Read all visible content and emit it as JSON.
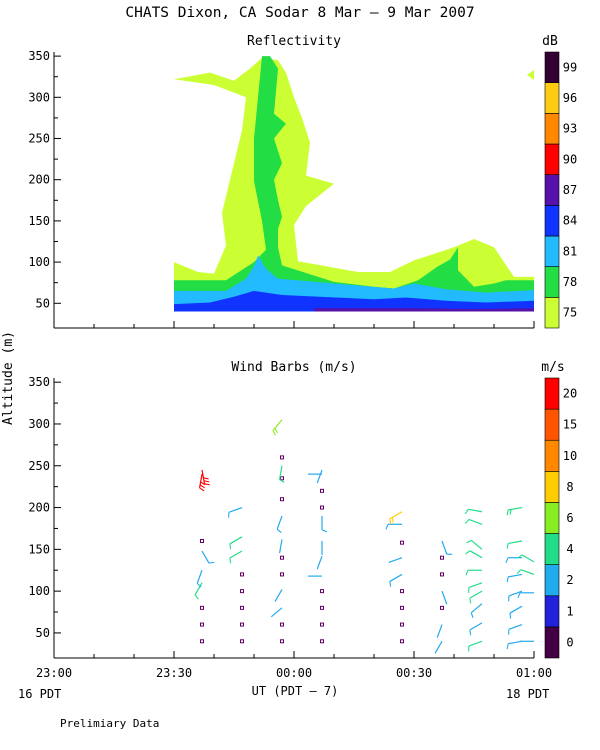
{
  "header": {
    "title": "CHATS Dixon, CA  Sodar   8 Mar –  9 Mar 2007",
    "footnote": "Prelimiary Data"
  },
  "x_axis": {
    "label": "UT  (PDT – 7)",
    "ticks": [
      "23:00",
      "23:30",
      "00:00",
      "00:30",
      "01:00"
    ],
    "left_note": "16 PDT",
    "right_note": "18 PDT"
  },
  "y_axis_label": "Altitude  (m)",
  "colors": {
    "ref_scale": [
      "#ccff33",
      "#22dd44",
      "#22bbff",
      "#1133ff",
      "#5511aa",
      "#ff0000",
      "#ff8800",
      "#ffcc11",
      "#330033"
    ],
    "wind_scale": [
      "#440044",
      "#2222dd",
      "#22aaee",
      "#22dd88",
      "#88ee22",
      "#ffcc00",
      "#ff8800",
      "#ff5500",
      "#ff0000"
    ]
  },
  "chart_data": [
    {
      "type": "heatmap",
      "title": "Reflectivity",
      "units": "dB",
      "ylim": [
        20,
        355
      ],
      "yticks": [
        50,
        100,
        150,
        200,
        250,
        300,
        350
      ],
      "x_range": [
        "23:00",
        "01:00"
      ],
      "colorbar": [
        75,
        78,
        81,
        84,
        87,
        90,
        93,
        96,
        99
      ],
      "contours": [
        {
          "level": 75,
          "polygon": [
            [
              "23:30",
              100
            ],
            [
              "23:30",
              63
            ],
            [
              "00:00",
              63
            ],
            [
              "00:20",
              63
            ],
            [
              "00:42",
              58
            ],
            [
              "01:00",
              58
            ],
            [
              "01:00",
              82
            ],
            [
              "00:55",
              82
            ],
            [
              "00:50",
              118
            ],
            [
              "00:45",
              128
            ],
            [
              "00:40",
              118
            ],
            [
              "00:30",
              102
            ],
            [
              "00:24",
              88
            ],
            [
              "00:16",
              88
            ],
            [
              "00:01",
              101
            ],
            [
              "00:00",
              145
            ],
            [
              "00:03",
              168
            ],
            [
              "00:10",
              195
            ],
            [
              "00:03",
              205
            ],
            [
              "00:04",
              245
            ],
            [
              "00:02",
              275
            ],
            [
              "00:00",
              300
            ],
            [
              "23:58",
              330
            ],
            [
              "23:56",
              345
            ],
            [
              "23:52",
              348
            ],
            [
              "23:49",
              335
            ],
            [
              "23:45",
              320
            ],
            [
              "23:39",
              330
            ],
            [
              "23:30",
              322
            ],
            [
              "23:40",
              315
            ],
            [
              "23:48",
              300
            ],
            [
              "23:47",
              260
            ],
            [
              "23:46",
              240
            ],
            [
              "23:44",
              200
            ],
            [
              "23:42",
              160
            ],
            [
              "23:43",
              120
            ],
            [
              "23:40",
              86
            ],
            [
              "23:36",
              88
            ]
          ]
        },
        {
          "level": 78,
          "polygon": [
            [
              "23:30",
              78
            ],
            [
              "23:43",
              78
            ],
            [
              "23:50",
              100
            ],
            [
              "23:53",
              115
            ],
            [
              "23:52",
              150
            ],
            [
              "23:50",
              198
            ],
            [
              "23:50",
              250
            ],
            [
              "23:51",
              300
            ],
            [
              "23:52",
              350
            ],
            [
              "23:54",
              350
            ],
            [
              "23:56",
              335
            ],
            [
              "23:55",
              280
            ],
            [
              "23:58",
              268
            ],
            [
              "23:55",
              250
            ],
            [
              "23:57",
              220
            ],
            [
              "23:55",
              200
            ],
            [
              "23:56",
              175
            ],
            [
              "23:57",
              155
            ],
            [
              "23:56",
              140
            ],
            [
              "23:56",
              118
            ],
            [
              "23:57",
              96
            ],
            [
              "00:10",
              76
            ],
            [
              "00:20",
              70
            ],
            [
              "00:25",
              68
            ],
            [
              "00:31",
              78
            ],
            [
              "00:36",
              95
            ],
            [
              "00:39",
              103
            ],
            [
              "00:41",
              118
            ],
            [
              "00:41",
              90
            ],
            [
              "00:45",
              70
            ],
            [
              "00:50",
              74
            ],
            [
              "00:53",
              78
            ],
            [
              "01:00",
              78
            ],
            [
              "01:00",
              40
            ],
            [
              "23:30",
              40
            ]
          ]
        },
        {
          "level": 81,
          "polygon": [
            [
              "23:30",
              65
            ],
            [
              "23:43",
              65
            ],
            [
              "23:48",
              80
            ],
            [
              "23:50",
              95
            ],
            [
              "23:51",
              108
            ],
            [
              "23:53",
              92
            ],
            [
              "23:56",
              80
            ],
            [
              "00:10",
              74
            ],
            [
              "00:25",
              68
            ],
            [
              "00:30",
              74
            ],
            [
              "00:38",
              67
            ],
            [
              "00:48",
              63
            ],
            [
              "01:00",
              66
            ],
            [
              "01:00",
              40
            ],
            [
              "23:30",
              40
            ]
          ]
        },
        {
          "level": 84,
          "polygon": [
            [
              "23:30",
              49
            ],
            [
              "23:39",
              51
            ],
            [
              "23:45",
              58
            ],
            [
              "23:50",
              65
            ],
            [
              "23:57",
              60
            ],
            [
              "00:20",
              55
            ],
            [
              "00:28",
              57
            ],
            [
              "00:38",
              53
            ],
            [
              "00:48",
              51
            ],
            [
              "01:00",
              53
            ],
            [
              "01:00",
              40
            ],
            [
              "23:30",
              40
            ]
          ]
        },
        {
          "level": 87,
          "polygon": [
            [
              "00:05",
              44
            ],
            [
              "00:30",
              44
            ],
            [
              "00:45",
              43
            ],
            [
              "01:00",
              44
            ],
            [
              "01:00",
              40
            ],
            [
              "00:05",
              40
            ]
          ]
        }
      ]
    },
    {
      "type": "scatter",
      "title": "Wind Barbs (m/s)",
      "units": "m/s",
      "ylim": [
        20,
        355
      ],
      "yticks": [
        50,
        100,
        150,
        200,
        250,
        300,
        350
      ],
      "x_range": [
        "23:00",
        "01:00"
      ],
      "colorbar": [
        0,
        1,
        2,
        4,
        6,
        8,
        10,
        15,
        20
      ],
      "barbs": [
        {
          "t": "23:37",
          "alt": 40,
          "calm": true
        },
        {
          "t": "23:37",
          "alt": 60,
          "calm": true
        },
        {
          "t": "23:37",
          "alt": 80,
          "calm": true
        },
        {
          "t": "23:37",
          "alt": 110,
          "speed": 4.5,
          "dir": 210
        },
        {
          "t": "23:37",
          "alt": 125,
          "speed": 2.5,
          "dir": 200
        },
        {
          "t": "23:37",
          "alt": 148,
          "speed": 3,
          "dir": 150
        },
        {
          "t": "23:37",
          "alt": 160,
          "calm": true
        },
        {
          "t": "23:37",
          "alt": 240,
          "speed": 22,
          "dir": 190
        },
        {
          "t": "23:37",
          "alt": 245,
          "speed": 22,
          "dir": 170
        },
        {
          "t": "23:47",
          "alt": 40,
          "calm": true
        },
        {
          "t": "23:47",
          "alt": 60,
          "calm": true
        },
        {
          "t": "23:47",
          "alt": 80,
          "calm": true
        },
        {
          "t": "23:47",
          "alt": 100,
          "calm": true
        },
        {
          "t": "23:47",
          "alt": 120,
          "calm": true
        },
        {
          "t": "23:47",
          "alt": 148,
          "speed": 4,
          "dir": 240
        },
        {
          "t": "23:47",
          "alt": 165,
          "speed": 4.5,
          "dir": 240
        },
        {
          "t": "23:47",
          "alt": 200,
          "speed": 3,
          "dir": 250
        },
        {
          "t": "23:57",
          "alt": 40,
          "calm": true
        },
        {
          "t": "23:57",
          "alt": 60,
          "calm": true
        },
        {
          "t": "23:57",
          "alt": 80,
          "speed": 2,
          "dir": 230
        },
        {
          "t": "23:57",
          "alt": 102,
          "speed": 2,
          "dir": 210
        },
        {
          "t": "23:57",
          "alt": 120,
          "calm": true
        },
        {
          "t": "23:57",
          "alt": 140,
          "calm": true
        },
        {
          "t": "23:57",
          "alt": 162,
          "speed": 2,
          "dir": 190
        },
        {
          "t": "23:57",
          "alt": 190,
          "speed": 3,
          "dir": 200
        },
        {
          "t": "23:57",
          "alt": 210,
          "calm": true
        },
        {
          "t": "23:57",
          "alt": 235,
          "calm": true
        },
        {
          "t": "23:57",
          "alt": 250,
          "speed": 4,
          "dir": 190
        },
        {
          "t": "23:57",
          "alt": 260,
          "calm": true
        },
        {
          "t": "23:57",
          "alt": 305,
          "speed": 6,
          "dir": 220
        },
        {
          "t": "00:07",
          "alt": 40,
          "calm": true
        },
        {
          "t": "00:07",
          "alt": 60,
          "calm": true
        },
        {
          "t": "00:07",
          "alt": 80,
          "calm": true
        },
        {
          "t": "00:07",
          "alt": 100,
          "calm": true
        },
        {
          "t": "00:07",
          "alt": 118,
          "speed": 2,
          "dir": 270
        },
        {
          "t": "00:07",
          "alt": 142,
          "speed": 2,
          "dir": 200
        },
        {
          "t": "00:07",
          "alt": 160,
          "speed": 2,
          "dir": 180
        },
        {
          "t": "00:07",
          "alt": 190,
          "speed": 3,
          "dir": 180
        },
        {
          "t": "00:07",
          "alt": 200,
          "calm": true
        },
        {
          "t": "00:07",
          "alt": 220,
          "calm": true
        },
        {
          "t": "00:07",
          "alt": 240,
          "speed": 2,
          "dir": 270
        },
        {
          "t": "00:07",
          "alt": 245,
          "speed": 2,
          "dir": 200
        },
        {
          "t": "00:27",
          "alt": 40,
          "calm": true
        },
        {
          "t": "00:27",
          "alt": 60,
          "calm": true
        },
        {
          "t": "00:27",
          "alt": 80,
          "calm": true
        },
        {
          "t": "00:27",
          "alt": 100,
          "calm": true
        },
        {
          "t": "00:27",
          "alt": 120,
          "speed": 3,
          "dir": 240
        },
        {
          "t": "00:27",
          "alt": 140,
          "speed": 2,
          "dir": 250
        },
        {
          "t": "00:27",
          "alt": 158,
          "calm": true
        },
        {
          "t": "00:27",
          "alt": 180,
          "speed": 3.5,
          "dir": 270
        },
        {
          "t": "00:27",
          "alt": 195,
          "speed": 9,
          "dir": 240
        },
        {
          "t": "00:37",
          "alt": 40,
          "speed": 2,
          "dir": 210
        },
        {
          "t": "00:37",
          "alt": 60,
          "speed": 2,
          "dir": 200
        },
        {
          "t": "00:37",
          "alt": 80,
          "calm": true
        },
        {
          "t": "00:37",
          "alt": 100,
          "speed": 2,
          "dir": 160
        },
        {
          "t": "00:37",
          "alt": 120,
          "calm": true
        },
        {
          "t": "00:37",
          "alt": 140,
          "calm": true
        },
        {
          "t": "00:37",
          "alt": 160,
          "speed": 3,
          "dir": 160
        },
        {
          "t": "00:47",
          "alt": 40,
          "speed": 4,
          "dir": 250
        },
        {
          "t": "00:47",
          "alt": 62,
          "speed": 3.5,
          "dir": 240
        },
        {
          "t": "00:47",
          "alt": 85,
          "speed": 3.5,
          "dir": 230
        },
        {
          "t": "00:47",
          "alt": 100,
          "speed": 4,
          "dir": 240
        },
        {
          "t": "00:47",
          "alt": 110,
          "speed": 4.5,
          "dir": 250
        },
        {
          "t": "00:47",
          "alt": 125,
          "speed": 4.5,
          "dir": 270
        },
        {
          "t": "00:47",
          "alt": 140,
          "speed": 4.5,
          "dir": 300
        },
        {
          "t": "00:47",
          "alt": 150,
          "speed": 4.5,
          "dir": 310
        },
        {
          "t": "00:47",
          "alt": 180,
          "speed": 4.5,
          "dir": 290
        },
        {
          "t": "00:47",
          "alt": 195,
          "speed": 4.5,
          "dir": 280
        },
        {
          "t": "00:57",
          "alt": 40,
          "speed": 2.5,
          "dir": 260
        },
        {
          "t": "00:57",
          "alt": 60,
          "speed": 3,
          "dir": 250
        },
        {
          "t": "00:57",
          "alt": 82,
          "speed": 2.5,
          "dir": 240
        },
        {
          "t": "00:57",
          "alt": 100,
          "speed": 2.5,
          "dir": 250
        },
        {
          "t": "00:57",
          "alt": 120,
          "speed": 3.5,
          "dir": 260
        },
        {
          "t": "00:57",
          "alt": 140,
          "speed": 3,
          "dir": 270
        },
        {
          "t": "00:57",
          "alt": 160,
          "speed": 4,
          "dir": 260
        },
        {
          "t": "00:57",
          "alt": 200,
          "speed": 5,
          "dir": 260
        },
        {
          "t": "01:00",
          "alt": 40,
          "speed": 2,
          "dir": 270
        },
        {
          "t": "01:00",
          "alt": 98,
          "speed": 3,
          "dir": 270
        },
        {
          "t": "01:00",
          "alt": 120,
          "speed": 4,
          "dir": 290
        },
        {
          "t": "01:00",
          "alt": 135,
          "speed": 4.5,
          "dir": 300
        }
      ]
    }
  ]
}
